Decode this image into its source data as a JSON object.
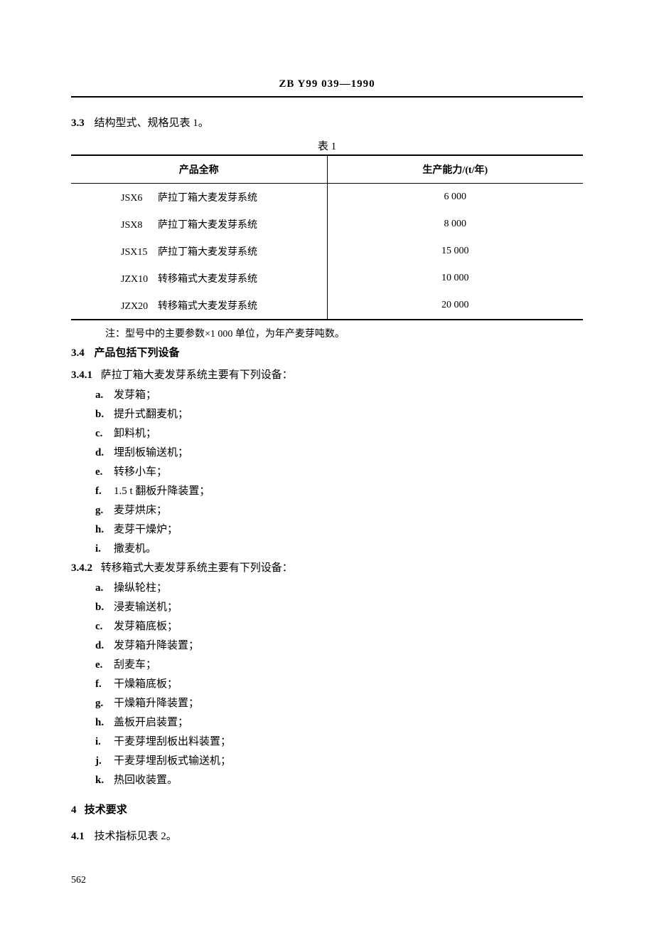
{
  "header": {
    "standard_code": "ZB Y99 039—1990"
  },
  "section_3_3": {
    "num": "3.3",
    "text": "结构型式、规格见表 1。"
  },
  "table1": {
    "caption": "表 1",
    "columns": [
      "产品全称",
      "生产能力/(t/年)"
    ],
    "rows": [
      {
        "model": "JSX6",
        "name": "萨拉丁箱大麦发芽系统",
        "capacity": "6 000"
      },
      {
        "model": "JSX8",
        "name": "萨拉丁箱大麦发芽系统",
        "capacity": "8 000"
      },
      {
        "model": "JSX15",
        "name": "萨拉丁箱大麦发芽系统",
        "capacity": "15 000"
      },
      {
        "model": "JZX10",
        "name": "转移箱式大麦发芽系统",
        "capacity": "10 000"
      },
      {
        "model": "JZX20",
        "name": "转移箱式大麦发芽系统",
        "capacity": "20 000"
      }
    ],
    "note": "注：型号中的主要参数×1 000 单位，为年产麦芽吨数。"
  },
  "section_3_4": {
    "num": "3.4",
    "text": "产品包括下列设备"
  },
  "section_3_4_1": {
    "num": "3.4.1",
    "text": "萨拉丁箱大麦发芽系统主要有下列设备：",
    "items": [
      {
        "marker": "a.",
        "text": "发芽箱；"
      },
      {
        "marker": "b.",
        "text": "提升式翻麦机；"
      },
      {
        "marker": "c.",
        "text": "卸料机；"
      },
      {
        "marker": "d.",
        "text": "埋刮板输送机；"
      },
      {
        "marker": "e.",
        "text": "转移小车；"
      },
      {
        "marker": "f.",
        "text": "1.5 t 翻板升降装置；"
      },
      {
        "marker": "g.",
        "text": "麦芽烘床；"
      },
      {
        "marker": "h.",
        "text": "麦芽干燥炉；"
      },
      {
        "marker": "i.",
        "text": "撒麦机。"
      }
    ]
  },
  "section_3_4_2": {
    "num": "3.4.2",
    "text": "转移箱式大麦发芽系统主要有下列设备：",
    "items": [
      {
        "marker": "a.",
        "text": "操纵轮柱；"
      },
      {
        "marker": "b.",
        "text": "浸麦输送机；"
      },
      {
        "marker": "c.",
        "text": "发芽箱底板；"
      },
      {
        "marker": "d.",
        "text": "发芽箱升降装置；"
      },
      {
        "marker": "e.",
        "text": "刮麦车；"
      },
      {
        "marker": "f.",
        "text": "干燥箱底板；"
      },
      {
        "marker": "g.",
        "text": "干燥箱升降装置；"
      },
      {
        "marker": "h.",
        "text": "盖板开启装置；"
      },
      {
        "marker": "i.",
        "text": "干麦芽埋刮板出料装置；"
      },
      {
        "marker": "j.",
        "text": "干麦芽埋刮板式输送机；"
      },
      {
        "marker": "k.",
        "text": "热回收装置。"
      }
    ]
  },
  "section_4": {
    "num": "4",
    "text": "技术要求"
  },
  "section_4_1": {
    "num": "4.1",
    "text": "技术指标见表 2。"
  },
  "page_number": "562"
}
